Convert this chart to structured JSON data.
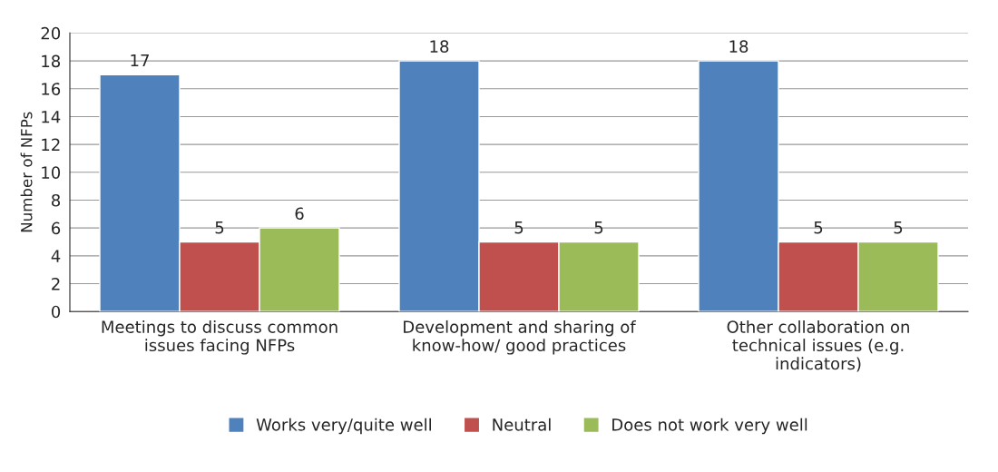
{
  "chart_data": {
    "type": "bar",
    "ylabel": "Number of NFPs",
    "categories": [
      "Meetings to discuss common\nissues facing NFPs",
      "Development and sharing of\nknow-how/ good practices",
      "Other collaboration on\ntechnical issues (e.g.\nindicators)"
    ],
    "series": [
      {
        "name": "Works very/quite well",
        "color": "#4f81bd",
        "values": [
          17,
          18,
          18
        ]
      },
      {
        "name": "Neutral",
        "color": "#c0504d",
        "values": [
          5,
          5,
          5
        ]
      },
      {
        "name": "Does not work very well",
        "color": "#9bbb59",
        "values": [
          6,
          5,
          5
        ]
      }
    ],
    "ylim": [
      0,
      20
    ],
    "yticks": [
      0,
      2,
      4,
      6,
      8,
      10,
      12,
      14,
      16,
      18,
      20
    ],
    "grid": "y",
    "legend": "bottom",
    "data_labels": true
  }
}
